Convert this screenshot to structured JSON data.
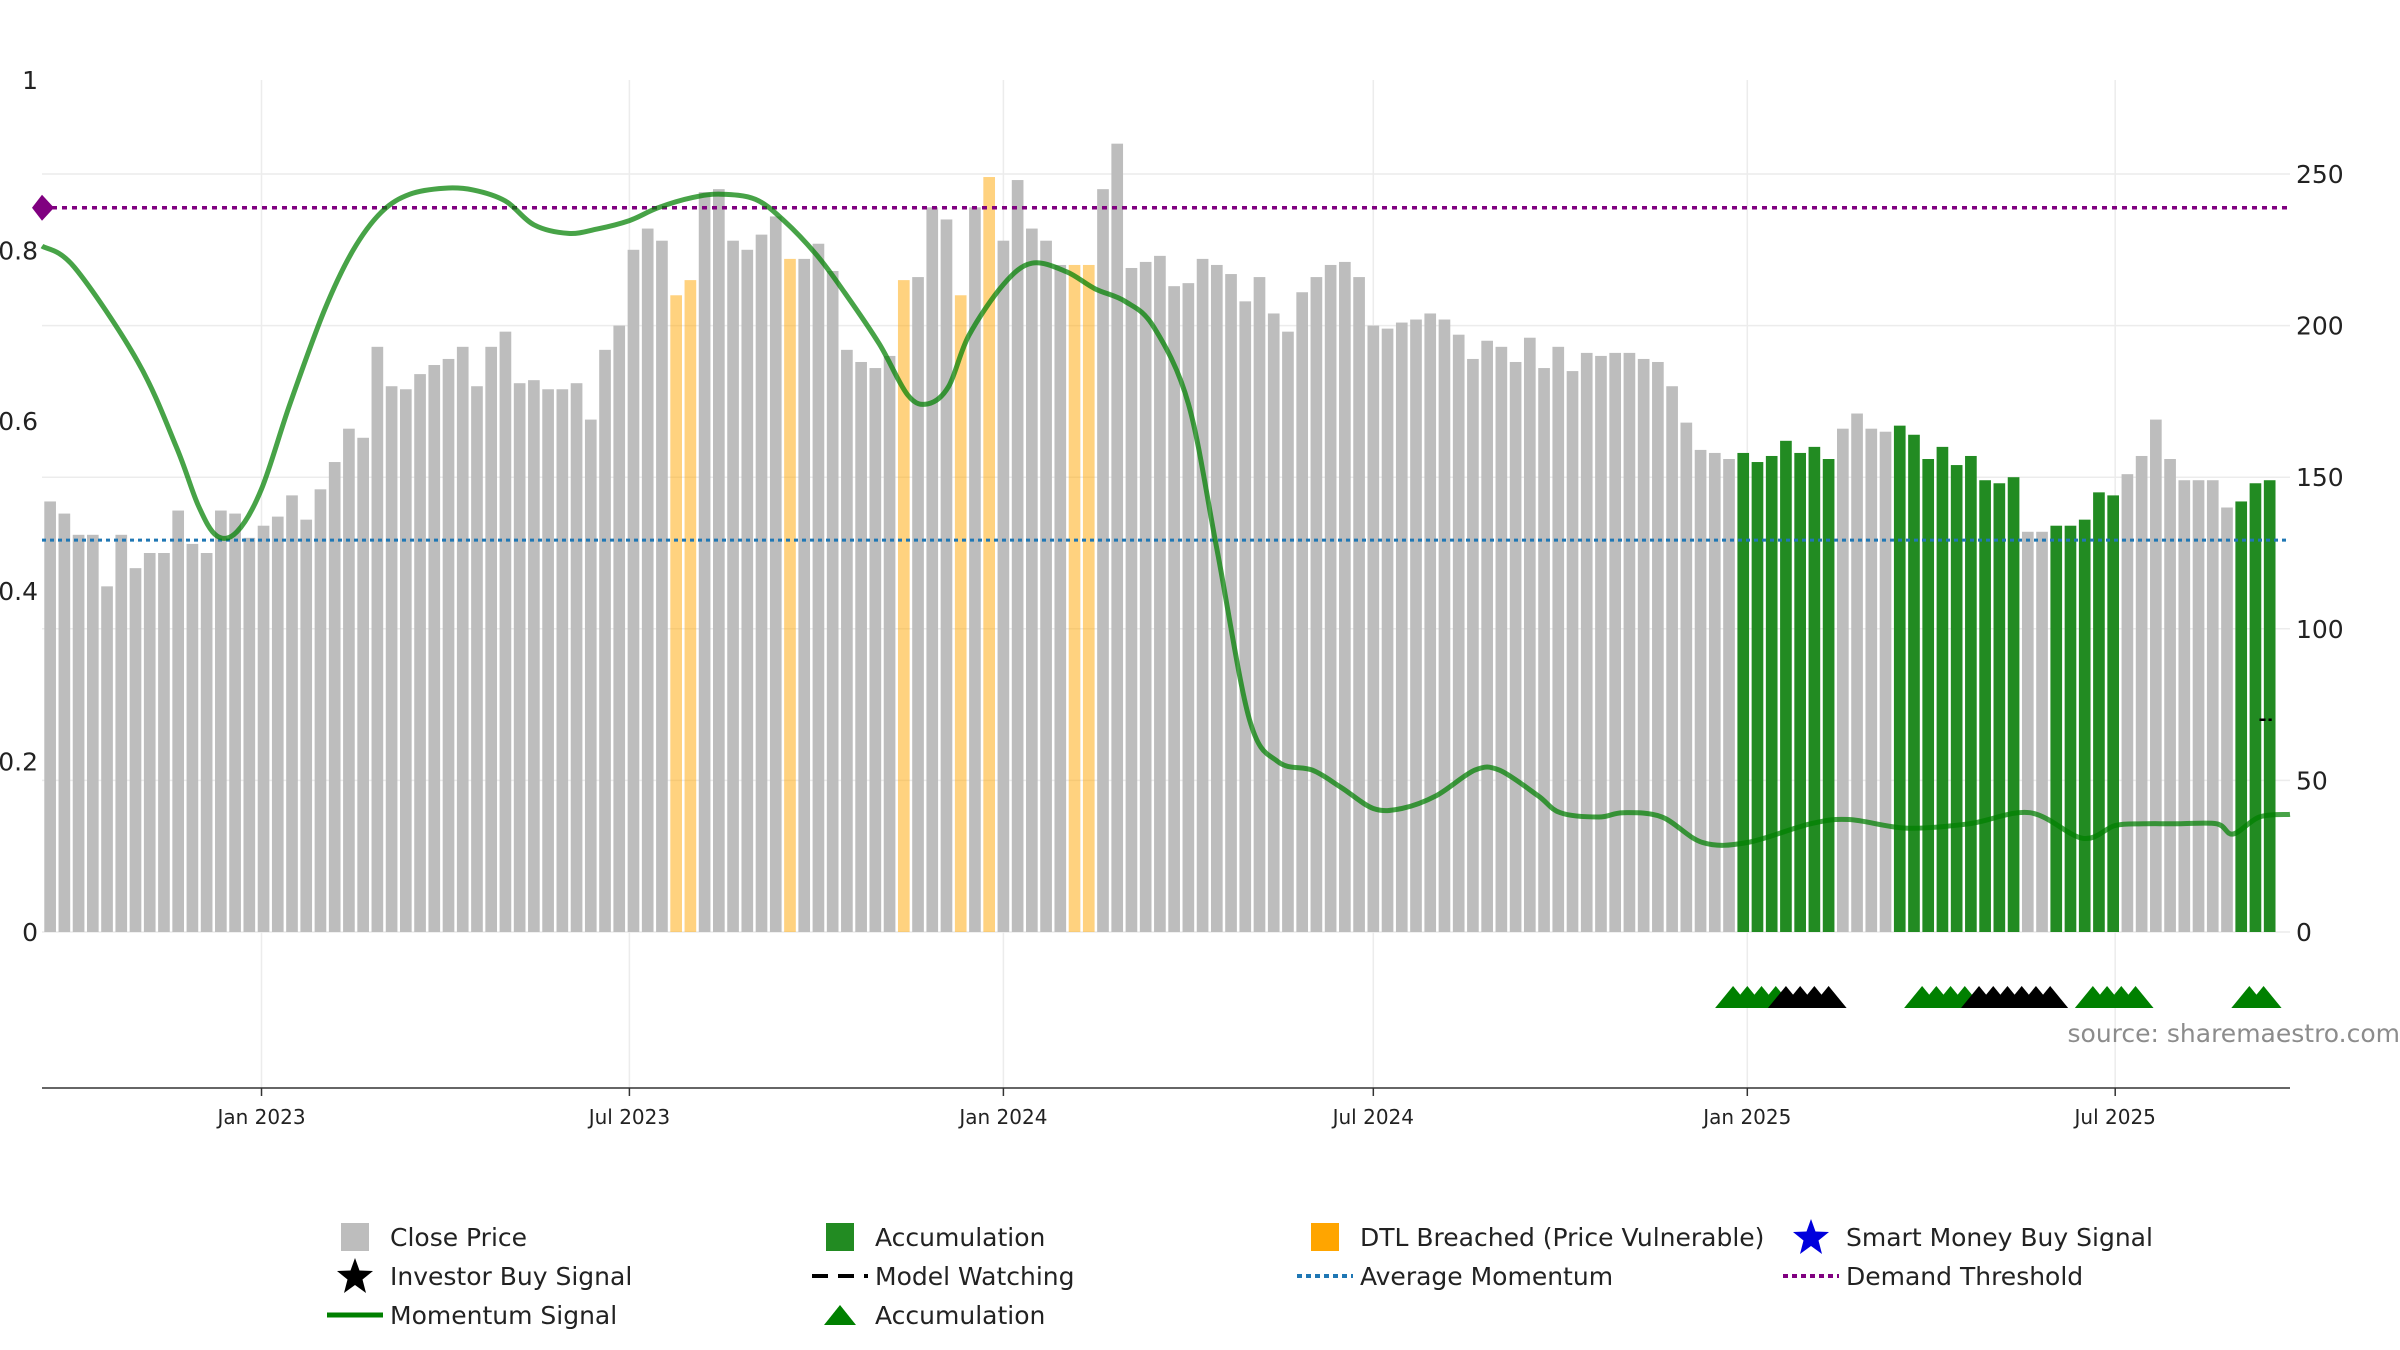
{
  "chart_data": {
    "type": "bar",
    "title": "",
    "source": "source: sharemaestro.com",
    "left_axis": {
      "ticks": [
        "0",
        "0.2",
        "0.4",
        "0.6",
        "0.8",
        "1"
      ],
      "ylim": [
        0,
        1
      ]
    },
    "right_axis": {
      "ticks": [
        "0",
        "50",
        "100",
        "150",
        "200",
        "250"
      ],
      "ylim": [
        0,
        281
      ]
    },
    "x_axis": {
      "type": "date",
      "ticks": [
        "Jan 2023",
        "Jul 2023",
        "Jan 2024",
        "Jul 2024",
        "Jan 2025",
        "Jul 2025"
      ],
      "tick_dates": [
        "2023-01-01",
        "2023-07-01",
        "2024-01-01",
        "2024-07-01",
        "2025-01-01",
        "2025-07-01"
      ],
      "range": [
        "2022-09-15",
        "2025-09-25"
      ]
    },
    "grid": true,
    "colors": {
      "close_price": "#bdbdbd",
      "accumulation": "#228b22",
      "dtl_breached": "#ffa500",
      "momentum": "#008000",
      "average_momentum": "#1f77b4",
      "demand_threshold": "#800080",
      "investor_signal": "#000000",
      "smart_money": "#0000dd"
    },
    "series": [
      {
        "name": "Close Price",
        "start_date": "2022-09-19",
        "values": [
          142,
          138,
          131,
          131,
          114,
          131,
          120,
          125,
          125,
          139,
          128,
          125,
          139,
          138,
          130,
          134,
          137,
          144,
          136,
          146,
          155,
          166,
          163,
          193,
          180,
          179,
          184,
          187,
          189,
          193,
          180,
          193,
          198,
          181,
          182,
          179,
          179,
          181,
          169,
          192,
          200,
          225,
          232,
          228,
          210,
          215,
          244,
          245,
          228,
          225,
          230,
          236,
          222,
          222,
          227,
          218,
          192,
          188,
          186,
          190,
          215,
          216,
          239,
          235,
          210,
          239,
          249,
          228,
          248,
          232,
          228,
          220,
          220,
          220,
          245,
          260,
          219,
          221,
          223,
          213,
          214,
          222,
          220,
          217,
          208,
          216,
          204,
          198,
          211,
          216,
          220,
          221,
          216,
          200,
          199,
          201,
          202,
          204,
          202,
          197,
          189,
          195,
          193,
          188,
          196,
          186,
          193,
          185,
          191,
          190,
          191,
          191,
          189,
          188,
          180,
          168,
          159,
          158,
          156,
          158,
          155,
          157,
          162,
          158,
          160,
          156,
          166,
          171,
          166,
          165,
          167,
          164,
          156,
          160,
          154,
          157,
          149,
          148,
          150,
          132,
          132,
          134,
          134,
          136,
          145,
          144,
          151,
          157,
          169,
          156,
          149,
          149,
          149,
          140,
          142,
          148,
          149
        ]
      },
      {
        "name": "Accumulation",
        "bar_ranges": [
          [
            119,
            125
          ],
          [
            130,
            138
          ],
          [
            141,
            145
          ],
          [
            154,
            156
          ]
        ]
      },
      {
        "name": "DTL Breached (Price Vulnerable)",
        "bar_ranges": [
          [
            44,
            45
          ],
          [
            52,
            52
          ],
          [
            60,
            60
          ],
          [
            64,
            64
          ],
          [
            66,
            66
          ],
          [
            72,
            73
          ]
        ]
      },
      {
        "name": "Momentum Signal",
        "points": [
          [
            "2022-09-15",
            0.805
          ],
          [
            "2022-10-01",
            0.78
          ],
          [
            "2022-11-01",
            0.67
          ],
          [
            "2022-11-20",
            0.57
          ],
          [
            "2022-12-01",
            0.5
          ],
          [
            "2022-12-10",
            0.465
          ],
          [
            "2022-12-20",
            0.47
          ],
          [
            "2023-01-01",
            0.52
          ],
          [
            "2023-01-15",
            0.62
          ],
          [
            "2023-02-01",
            0.73
          ],
          [
            "2023-02-15",
            0.8
          ],
          [
            "2023-03-01",
            0.845
          ],
          [
            "2023-03-15",
            0.866
          ],
          [
            "2023-04-01",
            0.873
          ],
          [
            "2023-04-15",
            0.871
          ],
          [
            "2023-05-01",
            0.858
          ],
          [
            "2023-05-15",
            0.83
          ],
          [
            "2023-06-01",
            0.82
          ],
          [
            "2023-06-15",
            0.825
          ],
          [
            "2023-07-01",
            0.835
          ],
          [
            "2023-07-15",
            0.85
          ],
          [
            "2023-08-01",
            0.862
          ],
          [
            "2023-08-15",
            0.866
          ],
          [
            "2023-09-01",
            0.86
          ],
          [
            "2023-09-15",
            0.835
          ],
          [
            "2023-10-01",
            0.795
          ],
          [
            "2023-10-15",
            0.75
          ],
          [
            "2023-11-01",
            0.69
          ],
          [
            "2023-11-15",
            0.63
          ],
          [
            "2023-11-25",
            0.62
          ],
          [
            "2023-12-05",
            0.64
          ],
          [
            "2023-12-15",
            0.7
          ],
          [
            "2024-01-01",
            0.76
          ],
          [
            "2024-01-15",
            0.785
          ],
          [
            "2024-02-01",
            0.775
          ],
          [
            "2024-02-15",
            0.755
          ],
          [
            "2024-03-01",
            0.74
          ],
          [
            "2024-03-15",
            0.71
          ],
          [
            "2024-04-01",
            0.62
          ],
          [
            "2024-04-15",
            0.45
          ],
          [
            "2024-05-01",
            0.25
          ],
          [
            "2024-05-15",
            0.2
          ],
          [
            "2024-06-01",
            0.19
          ],
          [
            "2024-06-15",
            0.17
          ],
          [
            "2024-07-01",
            0.145
          ],
          [
            "2024-07-15",
            0.145
          ],
          [
            "2024-08-01",
            0.16
          ],
          [
            "2024-08-20",
            0.19
          ],
          [
            "2024-09-01",
            0.19
          ],
          [
            "2024-09-20",
            0.16
          ],
          [
            "2024-10-01",
            0.14
          ],
          [
            "2024-10-20",
            0.135
          ],
          [
            "2024-11-01",
            0.14
          ],
          [
            "2024-11-20",
            0.135
          ],
          [
            "2024-12-10",
            0.105
          ],
          [
            "2025-01-01",
            0.105
          ],
          [
            "2025-02-01",
            0.127
          ],
          [
            "2025-02-20",
            0.132
          ],
          [
            "2025-03-20",
            0.122
          ],
          [
            "2025-04-20",
            0.127
          ],
          [
            "2025-05-20",
            0.14
          ],
          [
            "2025-06-15",
            0.11
          ],
          [
            "2025-07-01",
            0.125
          ],
          [
            "2025-07-15",
            0.127
          ],
          [
            "2025-08-01",
            0.127
          ],
          [
            "2025-08-20",
            0.127
          ],
          [
            "2025-08-28",
            0.115
          ],
          [
            "2025-09-10",
            0.135
          ],
          [
            "2025-09-25",
            0.138
          ]
        ]
      },
      {
        "name": "Average Momentum",
        "value": 0.46
      },
      {
        "name": "Demand Threshold",
        "value": 0.85
      },
      {
        "name": "Accumulation",
        "marker": "triangle",
        "green_dates": [
          "2024-12-25",
          "2025-01-01",
          "2025-01-08",
          "2025-01-15",
          "2025-03-28",
          "2025-04-04",
          "2025-04-11",
          "2025-04-18",
          "2025-06-20",
          "2025-06-27",
          "2025-07-04",
          "2025-07-11",
          "2025-09-05",
          "2025-09-12"
        ],
        "black_dates": [
          "2025-01-20",
          "2025-01-27",
          "2025-02-03",
          "2025-02-10",
          "2025-04-25",
          "2025-05-02",
          "2025-05-09",
          "2025-05-16",
          "2025-05-23",
          "2025-05-30"
        ]
      },
      {
        "name": "Model Watching",
        "points": [
          [
            "2025-09-10",
            70
          ],
          [
            "2025-09-16",
            70
          ]
        ]
      }
    ]
  },
  "legend": {
    "close_price": "Close Price",
    "accumulation": "Accumulation",
    "dtl_breached": "DTL Breached (Price Vulnerable)",
    "smart_money": "Smart Money Buy Signal",
    "investor_signal": "Investor Buy Signal",
    "model_watching": "Model Watching",
    "average_momentum": "Average Momentum",
    "demand_threshold": "Demand Threshold",
    "momentum": "Momentum Signal",
    "accumulation_marker": "Accumulation"
  }
}
